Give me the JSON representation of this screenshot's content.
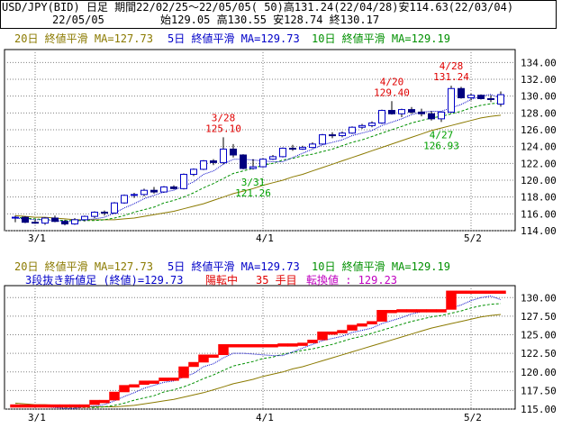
{
  "header": {
    "line1": "USD/JPY(BID) 日足 期間22/02/25～22/05/05( 50)高131.24(22/04/28)安114.63(22/03/04)",
    "date": "22/05/05",
    "ohlc": "始129.05 高130.55 安128.74 終130.17"
  },
  "legend": {
    "ma20": "20日 終値平滑 MA=127.73",
    "ma5": "5日 終値平滑 MA=129.73",
    "ma10": "10日 終値平滑 MA=129.19",
    "three_line_break": "3段抜き新値足 (終値)=129.73",
    "trend_status": "陽転中",
    "count_text": "35 手目",
    "reversal_text": "転換値 : 129.23"
  },
  "colors": {
    "ma20": "#8b7a00",
    "ma5": "#0000c8",
    "ma10": "#009000",
    "up_candle": "#0000c8",
    "down_candle": "#000080",
    "annotation_high": "#e00000",
    "annotation_low": "#00a000",
    "renko_up": "#ff0000",
    "grid": "#808080"
  },
  "chart_data": [
    {
      "type": "candlestick",
      "title": "",
      "dates": [
        "02/25",
        "02/28",
        "03/01",
        "03/02",
        "03/03",
        "03/04",
        "03/07",
        "03/08",
        "03/09",
        "03/10",
        "03/11",
        "03/14",
        "03/15",
        "03/16",
        "03/17",
        "03/18",
        "03/21",
        "03/22",
        "03/23",
        "03/24",
        "03/25",
        "03/28",
        "03/29",
        "03/30",
        "03/31",
        "04/01",
        "04/04",
        "04/05",
        "04/06",
        "04/07",
        "04/08",
        "04/11",
        "04/12",
        "04/13",
        "04/14",
        "04/15",
        "04/18",
        "04/19",
        "04/20",
        "04/21",
        "04/22",
        "04/25",
        "04/26",
        "04/27",
        "04/28",
        "04/29",
        "05/02",
        "05/03",
        "05/04",
        "05/05"
      ],
      "ohlc": [
        [
          115.5,
          115.8,
          115.0,
          115.6
        ],
        [
          115.6,
          115.7,
          114.9,
          115.0
        ],
        [
          115.0,
          115.3,
          114.8,
          114.9
        ],
        [
          114.9,
          115.6,
          114.7,
          115.5
        ],
        [
          115.5,
          115.8,
          115.0,
          115.1
        ],
        [
          115.1,
          115.3,
          114.63,
          114.8
        ],
        [
          114.8,
          115.5,
          114.7,
          115.3
        ],
        [
          115.3,
          115.8,
          115.1,
          115.7
        ],
        [
          115.7,
          116.3,
          115.5,
          116.2
        ],
        [
          116.2,
          116.4,
          115.8,
          116.1
        ],
        [
          116.1,
          117.4,
          116.0,
          117.3
        ],
        [
          117.3,
          118.3,
          117.2,
          118.2
        ],
        [
          118.2,
          118.5,
          117.9,
          118.3
        ],
        [
          118.3,
          119.0,
          118.1,
          118.8
        ],
        [
          118.8,
          119.2,
          118.4,
          118.6
        ],
        [
          118.6,
          119.3,
          118.5,
          119.2
        ],
        [
          119.2,
          119.4,
          118.9,
          119.0
        ],
        [
          119.0,
          120.8,
          118.9,
          120.7
        ],
        [
          120.7,
          121.4,
          120.5,
          121.3
        ],
        [
          121.3,
          122.4,
          121.2,
          122.3
        ],
        [
          122.3,
          122.5,
          121.8,
          122.1
        ],
        [
          122.1,
          125.1,
          121.9,
          123.7
        ],
        [
          123.7,
          124.3,
          122.7,
          123.0
        ],
        [
          123.0,
          123.1,
          121.3,
          121.4
        ],
        [
          121.4,
          122.5,
          121.26,
          121.6
        ],
        [
          121.6,
          122.6,
          121.5,
          122.5
        ],
        [
          122.5,
          123.0,
          122.4,
          122.8
        ],
        [
          122.8,
          123.9,
          122.7,
          123.8
        ],
        [
          123.8,
          124.2,
          123.5,
          123.7
        ],
        [
          123.7,
          124.1,
          123.6,
          123.9
        ],
        [
          123.9,
          124.5,
          123.8,
          124.3
        ],
        [
          124.3,
          125.5,
          124.2,
          125.4
        ],
        [
          125.4,
          125.7,
          125.0,
          125.3
        ],
        [
          125.3,
          125.8,
          125.1,
          125.6
        ],
        [
          125.6,
          126.4,
          125.5,
          126.3
        ],
        [
          126.3,
          126.7,
          126.1,
          126.5
        ],
        [
          126.5,
          127.0,
          126.3,
          126.8
        ],
        [
          126.8,
          128.4,
          126.7,
          128.3
        ],
        [
          128.3,
          129.4,
          127.8,
          127.9
        ],
        [
          127.9,
          128.5,
          127.5,
          128.4
        ],
        [
          128.4,
          128.7,
          127.9,
          128.1
        ],
        [
          128.1,
          128.5,
          127.6,
          127.9
        ],
        [
          127.9,
          128.2,
          127.1,
          127.3
        ],
        [
          127.3,
          128.2,
          126.93,
          128.1
        ],
        [
          128.1,
          131.24,
          128.0,
          130.9
        ],
        [
          130.9,
          131.1,
          129.7,
          129.8
        ],
        [
          129.8,
          130.3,
          129.5,
          130.1
        ],
        [
          130.1,
          130.2,
          129.6,
          129.7
        ],
        [
          129.7,
          130.1,
          129.3,
          129.6
        ],
        [
          129.05,
          130.55,
          128.74,
          130.17
        ]
      ],
      "ma5": [
        115.5,
        115.4,
        115.3,
        115.3,
        115.2,
        115.1,
        115.1,
        115.3,
        115.4,
        115.6,
        116.1,
        116.7,
        117.2,
        117.8,
        118.2,
        118.6,
        118.8,
        119.3,
        119.8,
        120.7,
        121.1,
        121.9,
        122.5,
        122.5,
        122.4,
        122.3,
        122.2,
        122.2,
        122.7,
        123.2,
        123.7,
        124.2,
        124.5,
        124.8,
        125.3,
        125.6,
        125.9,
        126.5,
        126.9,
        127.3,
        127.8,
        128.1,
        128.2,
        128.2,
        128.6,
        129.0,
        129.6,
        130.0,
        130.2,
        129.73
      ],
      "ma10": [
        115.6,
        115.5,
        115.4,
        115.3,
        115.3,
        115.2,
        115.2,
        115.2,
        115.2,
        115.3,
        115.5,
        115.8,
        116.2,
        116.5,
        116.8,
        117.3,
        117.6,
        118.0,
        118.5,
        119.1,
        119.6,
        120.2,
        120.8,
        121.1,
        121.4,
        121.8,
        122.0,
        122.4,
        122.6,
        122.9,
        123.1,
        123.4,
        123.7,
        124.1,
        124.5,
        124.8,
        125.2,
        125.6,
        126.0,
        126.4,
        126.8,
        127.1,
        127.4,
        127.6,
        127.9,
        128.2,
        128.6,
        128.9,
        129.1,
        129.19
      ],
      "ma20": [
        115.8,
        115.7,
        115.6,
        115.6,
        115.5,
        115.4,
        115.3,
        115.3,
        115.3,
        115.3,
        115.3,
        115.4,
        115.5,
        115.7,
        115.9,
        116.1,
        116.3,
        116.6,
        116.9,
        117.2,
        117.6,
        118.0,
        118.4,
        118.7,
        119.0,
        119.4,
        119.7,
        120.0,
        120.4,
        120.7,
        121.1,
        121.5,
        121.9,
        122.3,
        122.7,
        123.1,
        123.5,
        123.9,
        124.3,
        124.7,
        125.1,
        125.5,
        125.9,
        126.2,
        126.5,
        126.8,
        127.1,
        127.4,
        127.6,
        127.73
      ],
      "annotations": [
        {
          "date": "03/28",
          "label_date": "3/28",
          "value": "125.10",
          "kind": "high"
        },
        {
          "date": "03/31",
          "label_date": "3/31",
          "value": "121.26",
          "kind": "low"
        },
        {
          "date": "04/20",
          "label_date": "4/20",
          "value": "129.40",
          "kind": "high"
        },
        {
          "date": "04/27",
          "label_date": "4/27",
          "value": "126.93",
          "kind": "low"
        },
        {
          "date": "04/28",
          "label_date": "4/28",
          "value": "131.24",
          "kind": "high"
        }
      ],
      "y_ticks": [
        "114.00",
        "116.00",
        "118.00",
        "120.00",
        "122.00",
        "124.00",
        "126.00",
        "128.00",
        "130.00",
        "132.00",
        "134.00"
      ],
      "ylim": [
        114,
        135
      ],
      "x_labels": [
        {
          "date": "03/01",
          "label": "3/1"
        },
        {
          "date": "04/01",
          "label": "4/1"
        },
        {
          "date": "05/02",
          "label": "5/2"
        }
      ],
      "grid": true
    },
    {
      "type": "bar",
      "title": "",
      "chart": "three-line-break",
      "dates": [
        "02/25",
        "02/28",
        "03/01",
        "03/02",
        "03/03",
        "03/04",
        "03/07",
        "03/08",
        "03/09",
        "03/10",
        "03/11",
        "03/14",
        "03/15",
        "03/16",
        "03/17",
        "03/18",
        "03/21",
        "03/22",
        "03/23",
        "03/24",
        "03/25",
        "03/28",
        "03/29",
        "03/30",
        "03/31",
        "04/01",
        "04/04",
        "04/05",
        "04/06",
        "04/07",
        "04/08",
        "04/11",
        "04/12",
        "04/13",
        "04/14",
        "04/15",
        "04/18",
        "04/19",
        "04/20",
        "04/21",
        "04/22",
        "04/25",
        "04/26",
        "04/27",
        "04/28",
        "04/29",
        "05/02",
        "05/03",
        "05/04",
        "05/05"
      ],
      "bricks": [
        [
          115.6,
          115.6
        ],
        [
          115.6,
          115.6
        ],
        [
          115.6,
          115.6
        ],
        [
          115.6,
          115.6
        ],
        [
          115.6,
          115.6
        ],
        [
          115.6,
          115.6
        ],
        [
          115.6,
          115.6
        ],
        [
          115.6,
          115.6
        ],
        [
          115.6,
          116.2
        ],
        [
          116.2,
          116.2
        ],
        [
          116.2,
          117.3
        ],
        [
          117.3,
          118.2
        ],
        [
          118.2,
          118.3
        ],
        [
          118.3,
          118.8
        ],
        [
          118.8,
          118.8
        ],
        [
          118.8,
          119.2
        ],
        [
          119.2,
          119.2
        ],
        [
          119.2,
          120.7
        ],
        [
          120.7,
          121.3
        ],
        [
          121.3,
          122.3
        ],
        [
          122.3,
          122.3
        ],
        [
          122.3,
          123.7
        ],
        [
          123.7,
          123.7
        ],
        [
          123.7,
          123.7
        ],
        [
          123.7,
          123.7
        ],
        [
          123.7,
          123.7
        ],
        [
          123.7,
          123.7
        ],
        [
          123.7,
          123.8
        ],
        [
          123.8,
          123.8
        ],
        [
          123.8,
          123.9
        ],
        [
          123.9,
          124.3
        ],
        [
          124.3,
          125.4
        ],
        [
          125.4,
          125.4
        ],
        [
          125.4,
          125.6
        ],
        [
          125.6,
          126.3
        ],
        [
          126.3,
          126.5
        ],
        [
          126.5,
          126.8
        ],
        [
          126.8,
          128.3
        ],
        [
          128.3,
          128.3
        ],
        [
          128.3,
          128.4
        ],
        [
          128.4,
          128.4
        ],
        [
          128.4,
          128.4
        ],
        [
          128.4,
          128.4
        ],
        [
          128.4,
          128.4
        ],
        [
          128.4,
          130.9
        ],
        [
          130.9,
          130.9
        ],
        [
          130.9,
          130.9
        ],
        [
          130.9,
          130.9
        ],
        [
          130.9,
          130.9
        ],
        [
          130.9,
          130.9
        ]
      ],
      "y_ticks": [
        "115.00",
        "117.50",
        "120.00",
        "122.50",
        "125.00",
        "127.50",
        "130.00"
      ],
      "ylim": [
        115,
        131
      ],
      "x_labels": [
        {
          "date": "03/01",
          "label": "3/1"
        },
        {
          "date": "04/01",
          "label": "4/1"
        },
        {
          "date": "05/02",
          "label": "5/2"
        }
      ],
      "grid": true
    }
  ]
}
